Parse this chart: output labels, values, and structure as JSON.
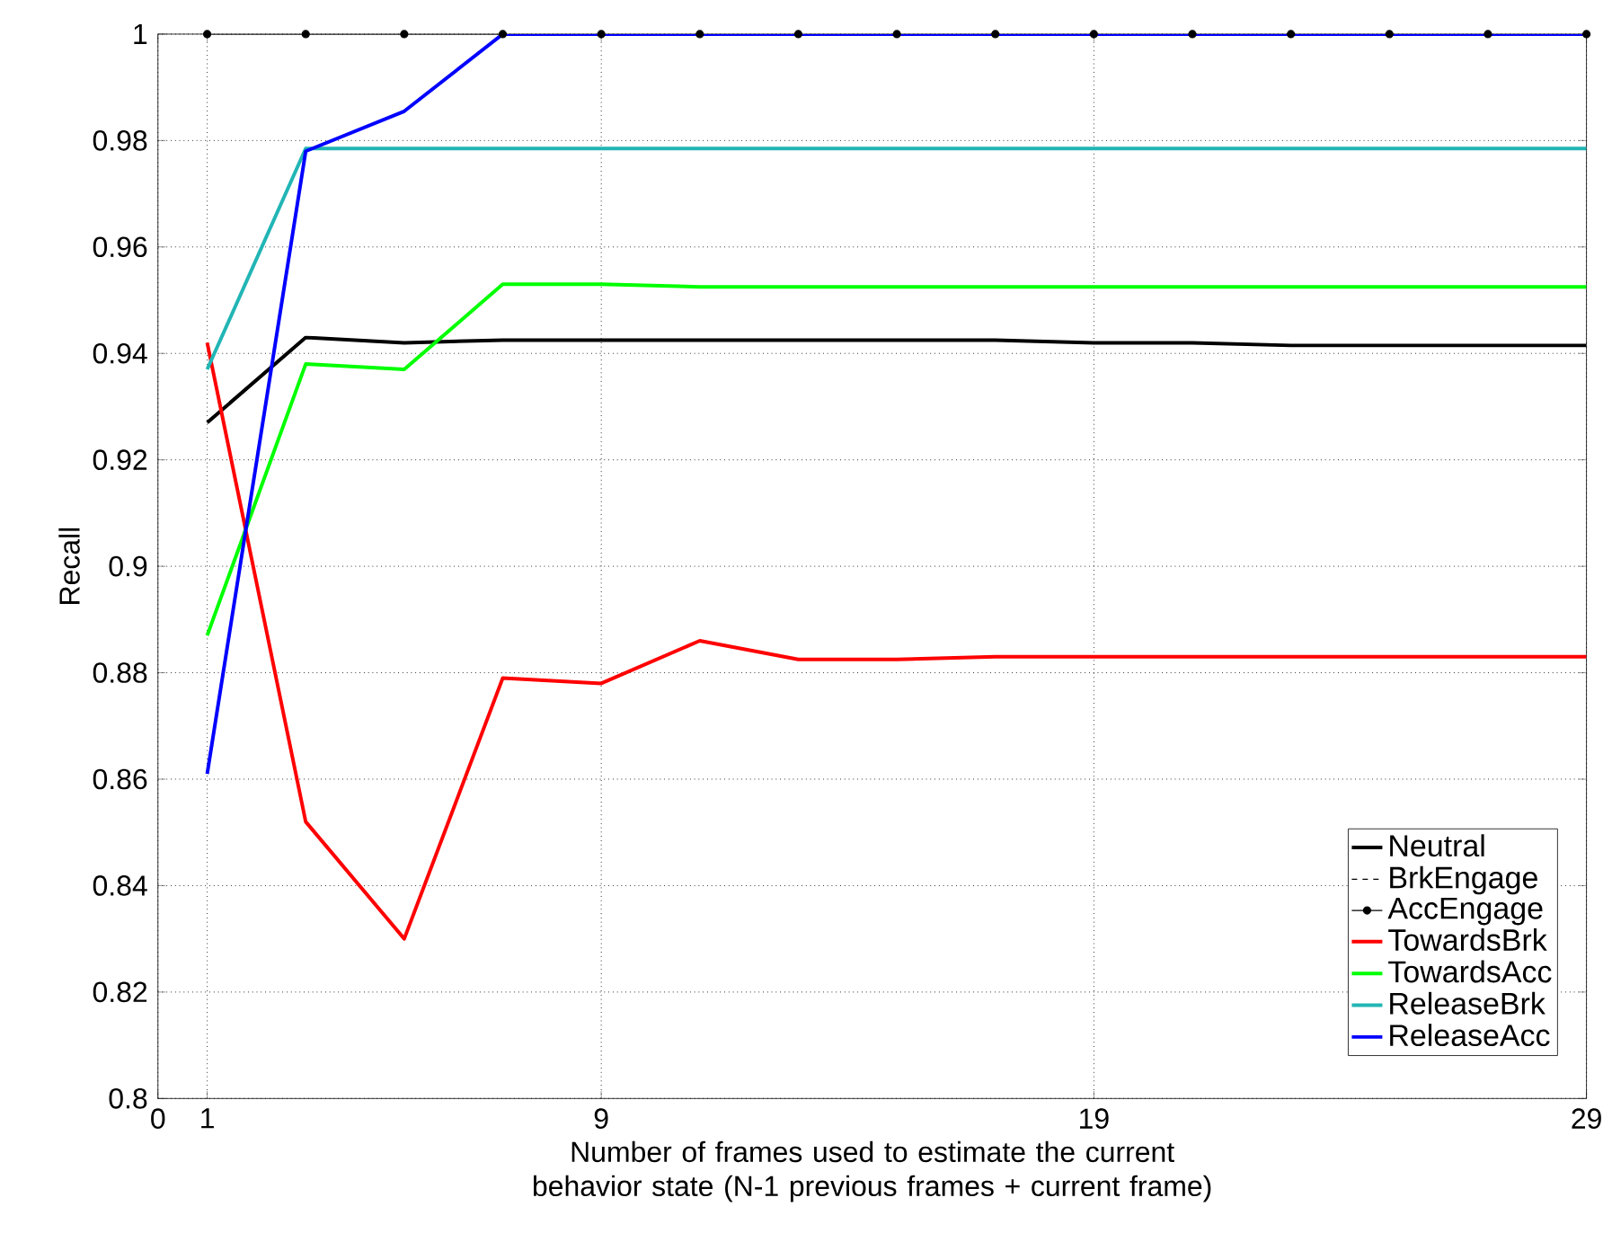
{
  "chart_data": {
    "type": "line",
    "xlabel": "Number of frames used to estimate the current behavior state (N-1 previous frames + current frame)",
    "ylabel": "Recall",
    "x": [
      1,
      3,
      5,
      7,
      9,
      11,
      13,
      15,
      17,
      19,
      21,
      23,
      25,
      27,
      29
    ],
    "xlim": [
      0,
      29
    ],
    "xticks": [
      0,
      1,
      9,
      19,
      29
    ],
    "ylim": [
      0.8,
      1
    ],
    "yticks": [
      0.8,
      0.82,
      0.84,
      0.86,
      0.88,
      0.9,
      0.92,
      0.94,
      0.96,
      0.98,
      1
    ],
    "grid": true,
    "legend": "bottom right",
    "series": [
      {
        "name": "Neutral",
        "color": "#000000",
        "values": [
          0.927,
          0.943,
          0.942,
          0.9425,
          0.9425,
          0.9425,
          0.9425,
          0.9425,
          0.9425,
          0.942,
          0.942,
          0.9415,
          0.9415,
          0.9415,
          0.9415
        ]
      },
      {
        "name": "BrkEngage",
        "color": "#000000",
        "line_style": "dashed",
        "values": [
          null,
          null,
          null,
          null,
          null,
          null,
          null,
          null,
          null,
          null,
          null,
          null,
          null,
          null,
          null
        ]
      },
      {
        "name": "AccEngage",
        "color": "#000000",
        "marker": "circle",
        "values": [
          1,
          1,
          1,
          1,
          1,
          1,
          1,
          1,
          1,
          1,
          1,
          1,
          1,
          1,
          1
        ]
      },
      {
        "name": "TowardsBrk",
        "color": "#ff0000",
        "values": [
          0.942,
          0.852,
          0.83,
          0.879,
          0.878,
          0.886,
          0.8825,
          0.8825,
          0.883,
          0.883,
          0.883,
          0.883,
          0.883,
          0.883,
          0.883
        ]
      },
      {
        "name": "TowardsAcc",
        "color": "#00ff00",
        "values": [
          0.887,
          0.938,
          0.937,
          0.953,
          0.953,
          0.9525,
          0.9525,
          0.9525,
          0.9525,
          0.9525,
          0.9525,
          0.9525,
          0.9525,
          0.9525,
          0.9525
        ]
      },
      {
        "name": "ReleaseBrk",
        "color": "#22b5b5",
        "values": [
          0.937,
          0.9785,
          0.9785,
          0.9785,
          0.9785,
          0.9785,
          0.9785,
          0.9785,
          0.9785,
          0.9785,
          0.9785,
          0.9785,
          0.9785,
          0.9785,
          0.9785
        ]
      },
      {
        "name": "ReleaseAcc",
        "color": "#0000ff",
        "values": [
          0.861,
          0.978,
          0.9855,
          1,
          1,
          1,
          1,
          1,
          1,
          1,
          1,
          1,
          1,
          1,
          1
        ]
      }
    ]
  }
}
